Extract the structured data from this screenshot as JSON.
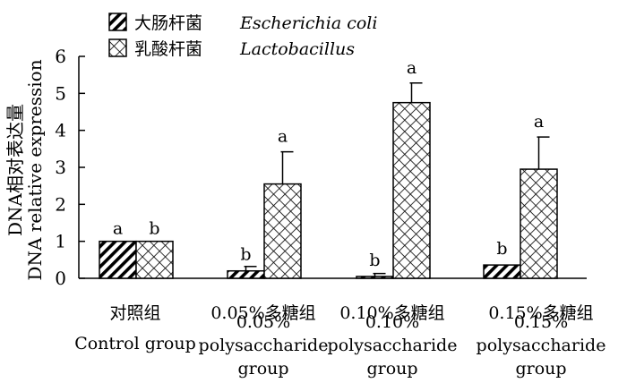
{
  "chart_data": {
    "type": "bar",
    "ylabel_cn": "DNA相对表达量",
    "ylabel_en": "DNA relative expression",
    "ylim": [
      0,
      6
    ],
    "yticks": [
      "0",
      "1",
      "2",
      "3",
      "4",
      "5",
      "6"
    ],
    "categories": [
      {
        "cn": "对照组",
        "en": [
          "Control group"
        ]
      },
      {
        "cn": "0.05%多糖组",
        "en": [
          "0.05%",
          "polysaccharide",
          "group"
        ]
      },
      {
        "cn": "0.10%多糖组",
        "en": [
          "0.10%",
          "polysaccharide",
          "group"
        ]
      },
      {
        "cn": "0.15%多糖组",
        "en": [
          "0.15%",
          "polysaccharide",
          "group"
        ]
      }
    ],
    "series": [
      {
        "name_cn": "大肠杆菌",
        "name_en": "Escherichia coli",
        "values": [
          1.0,
          0.2,
          0.05,
          0.36
        ],
        "errors": [
          0,
          0.12,
          0.08,
          0
        ],
        "labels": [
          "a",
          "b",
          "b",
          "b"
        ]
      },
      {
        "name_cn": "乳酸杆菌",
        "name_en": "Lactobacillus",
        "values": [
          1.0,
          2.55,
          4.75,
          2.95
        ],
        "errors": [
          0,
          0.87,
          0.53,
          0.87
        ],
        "labels": [
          "b",
          "a",
          "a",
          "a"
        ]
      }
    ],
    "legend": "top-left",
    "grid": false
  }
}
